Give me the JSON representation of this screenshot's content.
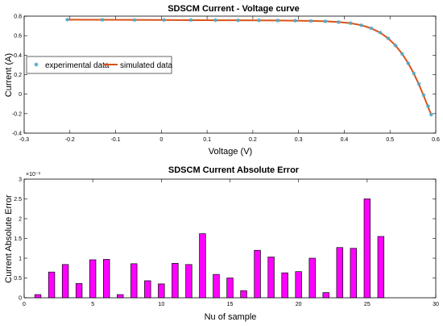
{
  "chart_data": [
    {
      "type": "line",
      "title": "SDSCM Current - Voltage curve",
      "xlabel": "Voltage (V)",
      "ylabel": "Current  (A)",
      "xlim": [
        -0.3,
        0.6
      ],
      "ylim": [
        -0.4,
        0.8
      ],
      "xticks": [
        "-0.3",
        "-0.2",
        "-0.1",
        "0",
        "0.1",
        "0.2",
        "0.3",
        "0.4",
        "0.5",
        "0.6"
      ],
      "yticks": [
        "-0.4",
        "-0.2",
        "0",
        "0.2",
        "0.4",
        "0.6",
        "0.8"
      ],
      "grid": false,
      "legend_position": "middle-left",
      "colors": {
        "experimental": "#4fa8c6",
        "simulated": "#d95319"
      },
      "series": [
        {
          "name": "experimental data",
          "marker": "star",
          "x": [
            -0.2057,
            -0.1291,
            -0.0588,
            0.0057,
            0.0646,
            0.1185,
            0.1678,
            0.2132,
            0.2545,
            0.2924,
            0.3269,
            0.3585,
            0.3873,
            0.4137,
            0.4373,
            0.459,
            0.4784,
            0.496,
            0.5119,
            0.5265,
            0.5398,
            0.5521,
            0.5633,
            0.5736,
            0.5833,
            0.59
          ],
          "y": [
            0.764,
            0.762,
            0.7605,
            0.7605,
            0.76,
            0.759,
            0.757,
            0.757,
            0.7555,
            0.754,
            0.7505,
            0.7465,
            0.7385,
            0.728,
            0.7065,
            0.6755,
            0.632,
            0.573,
            0.499,
            0.413,
            0.3165,
            0.212,
            0.1035,
            -0.01,
            -0.123,
            -0.21
          ]
        },
        {
          "name": "simulated data",
          "x": [
            -0.2057,
            -0.1291,
            -0.0588,
            0.0057,
            0.0646,
            0.1185,
            0.1678,
            0.2132,
            0.2545,
            0.2924,
            0.3269,
            0.3585,
            0.3873,
            0.4137,
            0.4373,
            0.459,
            0.4784,
            0.496,
            0.5119,
            0.5265,
            0.5398,
            0.5521,
            0.5633,
            0.5736,
            0.5833,
            0.59
          ],
          "y": [
            0.7641,
            0.7627,
            0.7614,
            0.7602,
            0.7591,
            0.758,
            0.7571,
            0.7561,
            0.7551,
            0.7537,
            0.7514,
            0.7474,
            0.7401,
            0.7274,
            0.7069,
            0.6752,
            0.6304,
            0.5718,
            0.4993,
            0.4137,
            0.317,
            0.2109,
            0.0982,
            -0.0169,
            -0.1319,
            -0.2095
          ]
        }
      ]
    },
    {
      "type": "bar",
      "title": "SDSCM Current Absolute Error",
      "xlabel": "Nu of sample",
      "ylabel": "Current Absolute Error",
      "scale_label": "×10⁻³",
      "xlim": [
        0,
        30
      ],
      "ylim": [
        0,
        3
      ],
      "xticks": [
        "0",
        "5",
        "10",
        "15",
        "20",
        "25",
        "30"
      ],
      "yticks": [
        "0",
        "0.5",
        "1",
        "1.5",
        "2",
        "2.5",
        "3"
      ],
      "grid": false,
      "colors": {
        "bar": "#ff00ff"
      },
      "x": [
        1,
        2,
        3,
        4,
        5,
        6,
        7,
        8,
        9,
        10,
        11,
        12,
        13,
        14,
        15,
        16,
        17,
        18,
        19,
        20,
        21,
        22,
        23,
        24,
        25,
        26
      ],
      "values": [
        0.08,
        0.65,
        0.84,
        0.36,
        0.96,
        0.97,
        0.08,
        0.86,
        0.43,
        0.35,
        0.87,
        0.84,
        1.62,
        0.59,
        0.5,
        0.18,
        1.2,
        1.03,
        0.63,
        0.66,
        1.0,
        0.13,
        1.27,
        1.25,
        2.5,
        1.55
      ]
    }
  ]
}
